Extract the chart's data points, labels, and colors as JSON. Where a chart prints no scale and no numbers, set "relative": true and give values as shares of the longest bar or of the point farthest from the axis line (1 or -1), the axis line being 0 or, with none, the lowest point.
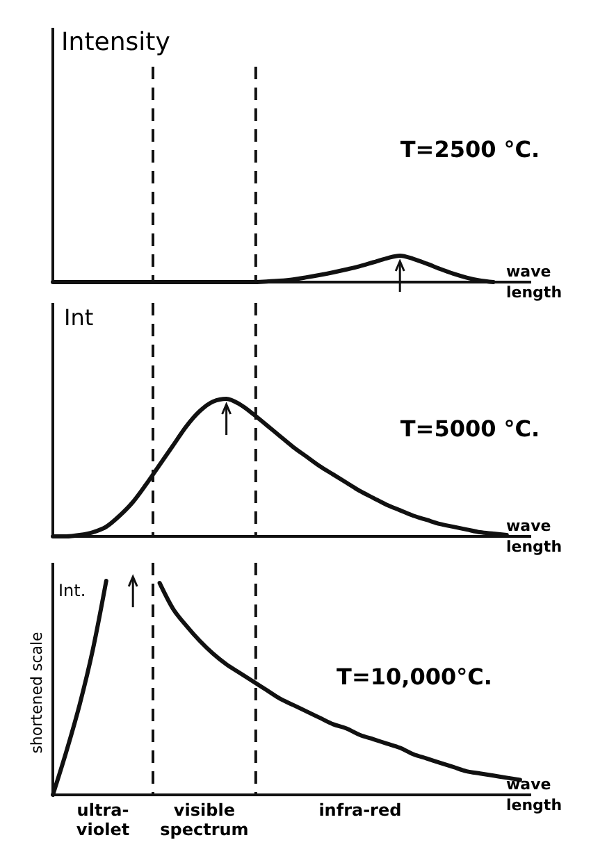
{
  "chart_data": [
    {
      "type": "line",
      "relative": true,
      "ylabel": "Intensity",
      "xlabel": "wave length",
      "annotations": [
        "T=2500 °C."
      ],
      "categories": [
        null,
        null,
        null,
        null,
        null,
        null,
        null,
        null,
        null,
        null,
        null,
        null,
        null,
        null,
        null,
        null,
        null,
        null,
        null,
        null,
        null,
        null,
        null,
        null,
        null,
        null,
        null,
        null,
        null,
        null,
        null,
        null,
        null,
        null,
        null,
        null
      ],
      "series": [
        {
          "color": "#111111",
          "values": [
            0,
            0,
            0,
            0,
            0,
            0,
            0,
            0,
            0,
            0,
            0,
            0,
            0,
            0,
            0,
            0,
            0.02,
            0.05,
            0.1,
            0.18,
            0.27,
            0.37,
            0.48,
            0.6,
            0.75,
            0.9,
            1,
            0.88,
            0.7,
            0.5,
            0.32,
            0.17,
            0.06,
            0,
            null,
            null
          ]
        }
      ]
    },
    {
      "type": "line",
      "relative": true,
      "ylabel": "Int",
      "xlabel": "wave length",
      "annotations": [
        "T=5000 °C."
      ],
      "categories": [
        null,
        null,
        null,
        null,
        null,
        null,
        null,
        null,
        null,
        null,
        null,
        null,
        null,
        null,
        null,
        null,
        null,
        null,
        null,
        null,
        null,
        null,
        null,
        null,
        null,
        null,
        null,
        null,
        null,
        null,
        null,
        null,
        null,
        null,
        null,
        null
      ],
      "series": [
        {
          "color": "#111111",
          "values": [
            0,
            0,
            0.01,
            0.03,
            0.07,
            0.15,
            0.25,
            0.38,
            0.52,
            0.66,
            0.8,
            0.91,
            0.98,
            1,
            0.96,
            0.89,
            0.81,
            0.73,
            0.65,
            0.58,
            0.51,
            0.45,
            0.39,
            0.33,
            0.28,
            0.23,
            0.19,
            0.15,
            0.12,
            0.09,
            0.07,
            0.05,
            0.03,
            0.02,
            0.01,
            null
          ]
        }
      ]
    },
    {
      "type": "line",
      "relative": true,
      "ylabel": "shortened scale",
      "xlabel": "wave length",
      "annotations": [
        "Int.",
        "T=10,000°C.",
        "ultra-violet",
        "visible spectrum",
        "infra-red"
      ],
      "categories": [
        null,
        null,
        null,
        null,
        null,
        null,
        null,
        null,
        null,
        null,
        null,
        null,
        null,
        null,
        null,
        null,
        null,
        null,
        null,
        null,
        null,
        null,
        null,
        null,
        null,
        null,
        null,
        null,
        null,
        null,
        null,
        null,
        null,
        null,
        null,
        null
      ],
      "series": [
        {
          "color": "#111111",
          "values": [
            0,
            0.2,
            0.42,
            0.68,
            1,
            null,
            null,
            null,
            0.99,
            0.87,
            0.79,
            0.72,
            0.66,
            0.61,
            0.57,
            0.53,
            0.49,
            0.45,
            0.42,
            0.39,
            0.36,
            0.33,
            0.31,
            0.28,
            0.26,
            0.24,
            0.22,
            0.19,
            0.17,
            0.15,
            0.13,
            0.11,
            0.1,
            0.09,
            0.08,
            0.07
          ]
        }
      ]
    }
  ]
}
